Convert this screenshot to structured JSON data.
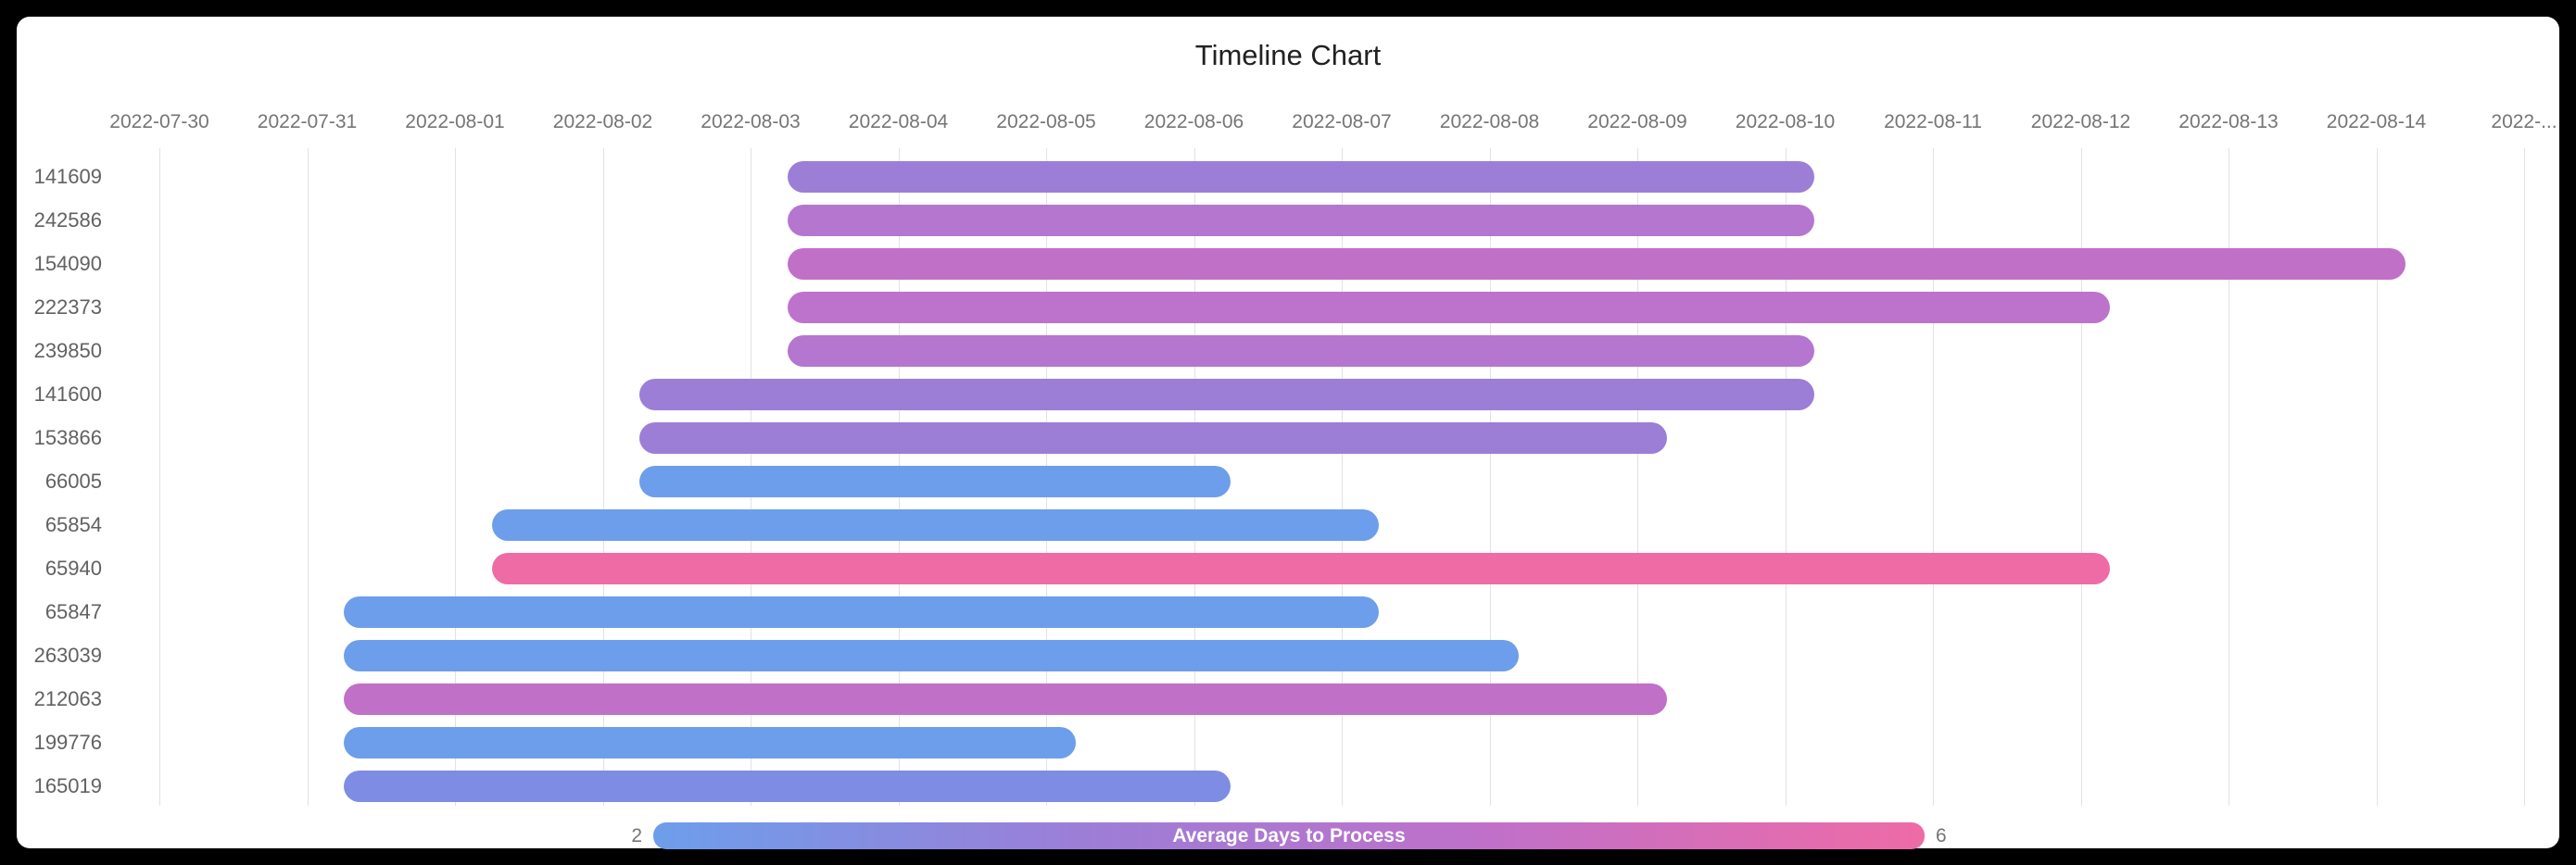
{
  "colors": {
    "frame_bg": "#000000",
    "panel_bg": "#ffffff",
    "title_text": "#212121",
    "axis_tick_text": "#757575",
    "row_label_text": "#616161",
    "gridline": "#e2e2e2",
    "scale_blue_min": "#6d9eeb",
    "scale_pink_max": "#ee6ba6"
  },
  "chart_data": {
    "type": "timeline",
    "title": "Timeline Chart",
    "grid": true,
    "legend_position": "bottom",
    "x_axis": {
      "start_date": "2022-07-30",
      "tick_interval_days": 1,
      "range_days": [
        0,
        16
      ],
      "tick_labels": [
        "2022-07-30",
        "2022-07-31",
        "2022-08-01",
        "2022-08-02",
        "2022-08-03",
        "2022-08-04",
        "2022-08-05",
        "2022-08-06",
        "2022-08-07",
        "2022-08-08",
        "2022-08-09",
        "2022-08-10",
        "2022-08-11",
        "2022-08-12",
        "2022-08-13",
        "2022-08-14",
        "2022-..."
      ]
    },
    "tasks": [
      {
        "id": "141609",
        "start_date": "2022-08-03",
        "end_date": "2022-08-10",
        "start_offset_days": 4.25,
        "end_offset_days": 11.2,
        "color": "#9c7ed7",
        "avg_days_estimate": 4.2
      },
      {
        "id": "242586",
        "start_date": "2022-08-03",
        "end_date": "2022-08-10",
        "start_offset_days": 4.25,
        "end_offset_days": 11.2,
        "color": "#b476cf",
        "avg_days_estimate": 4.8
      },
      {
        "id": "154090",
        "start_date": "2022-08-03",
        "end_date": "2022-08-14",
        "start_offset_days": 4.25,
        "end_offset_days": 15.2,
        "color": "#c170c8",
        "avg_days_estimate": 5.2
      },
      {
        "id": "222373",
        "start_date": "2022-08-03",
        "end_date": "2022-08-12",
        "start_offset_days": 4.25,
        "end_offset_days": 13.2,
        "color": "#bd73cb",
        "avg_days_estimate": 5.0
      },
      {
        "id": "239850",
        "start_date": "2022-08-03",
        "end_date": "2022-08-10",
        "start_offset_days": 4.25,
        "end_offset_days": 11.2,
        "color": "#b476cf",
        "avg_days_estimate": 4.8
      },
      {
        "id": "141600",
        "start_date": "2022-08-02",
        "end_date": "2022-08-10",
        "start_offset_days": 3.25,
        "end_offset_days": 11.2,
        "color": "#9c7ed7",
        "avg_days_estimate": 4.2
      },
      {
        "id": "153866",
        "start_date": "2022-08-02",
        "end_date": "2022-08-09",
        "start_offset_days": 3.25,
        "end_offset_days": 10.2,
        "color": "#9c7ed7",
        "avg_days_estimate": 4.2
      },
      {
        "id": "66005",
        "start_date": "2022-08-02",
        "end_date": "2022-08-06",
        "start_offset_days": 3.25,
        "end_offset_days": 7.25,
        "color": "#6d9eeb",
        "avg_days_estimate": 2.1
      },
      {
        "id": "65854",
        "start_date": "2022-08-01",
        "end_date": "2022-08-07",
        "start_offset_days": 2.25,
        "end_offset_days": 8.25,
        "color": "#6d9eeb",
        "avg_days_estimate": 2.1
      },
      {
        "id": "65940",
        "start_date": "2022-08-01",
        "end_date": "2022-08-12",
        "start_offset_days": 2.25,
        "end_offset_days": 13.2,
        "color": "#ee6ba6",
        "avg_days_estimate": 6.0
      },
      {
        "id": "65847",
        "start_date": "2022-07-31",
        "end_date": "2022-08-07",
        "start_offset_days": 1.25,
        "end_offset_days": 8.25,
        "color": "#6d9eeb",
        "avg_days_estimate": 2.1
      },
      {
        "id": "263039",
        "start_date": "2022-07-31",
        "end_date": "2022-08-08",
        "start_offset_days": 1.25,
        "end_offset_days": 9.2,
        "color": "#6d9eeb",
        "avg_days_estimate": 2.1
      },
      {
        "id": "212063",
        "start_date": "2022-07-31",
        "end_date": "2022-08-09",
        "start_offset_days": 1.25,
        "end_offset_days": 10.2,
        "color": "#c170c8",
        "avg_days_estimate": 5.2
      },
      {
        "id": "199776",
        "start_date": "2022-07-31",
        "end_date": "2022-08-05",
        "start_offset_days": 1.25,
        "end_offset_days": 6.2,
        "color": "#6d9eeb",
        "avg_days_estimate": 2.1
      },
      {
        "id": "165019",
        "start_date": "2022-07-31",
        "end_date": "2022-08-06",
        "start_offset_days": 1.25,
        "end_offset_days": 7.25,
        "color": "#7f8ce4",
        "avg_days_estimate": 2.7
      }
    ],
    "legend": {
      "label": "Average Days to Process",
      "min": "2",
      "max": "6",
      "gradient": [
        "#6d9eeb",
        "#9c7ed7",
        "#c170c8",
        "#ee6ba6"
      ]
    }
  }
}
